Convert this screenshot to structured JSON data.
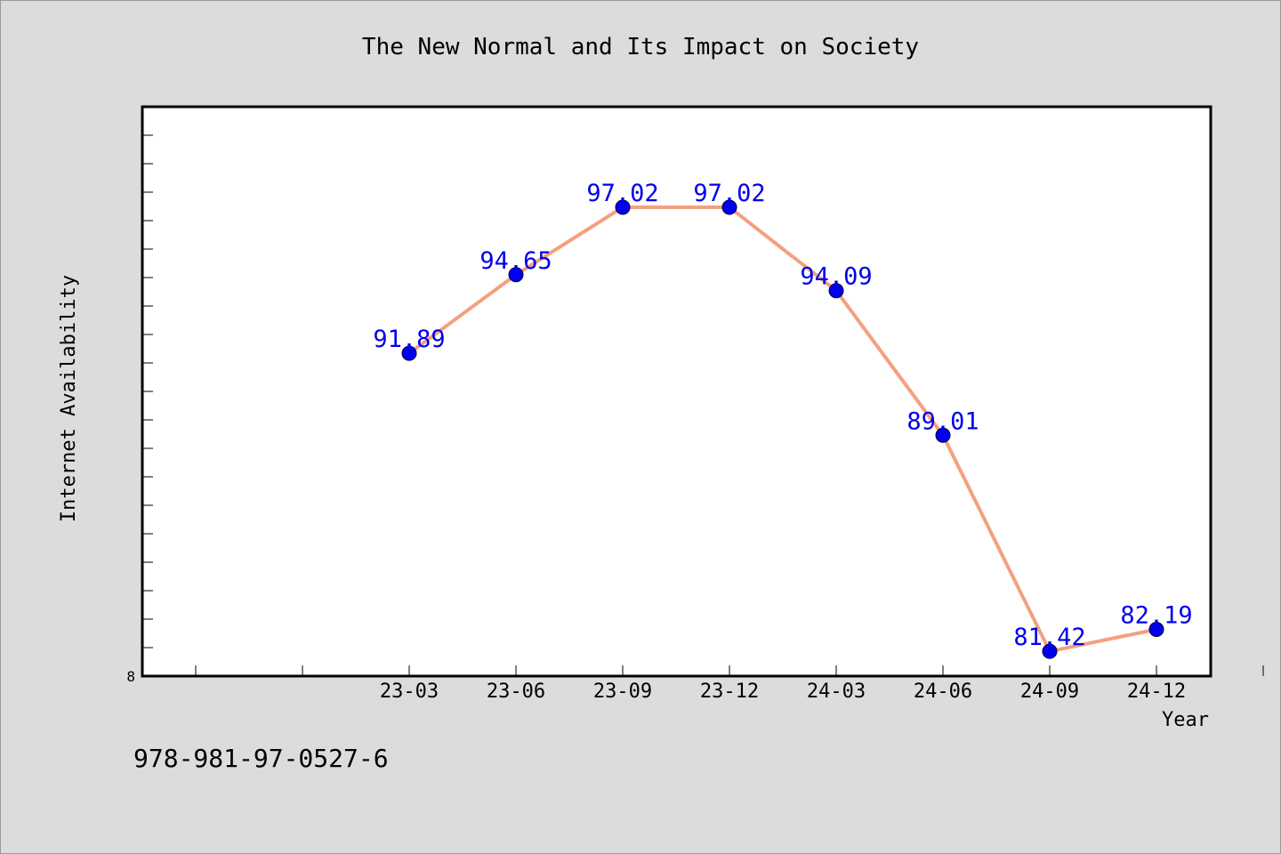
{
  "chart_data": {
    "type": "line",
    "title": "The New Normal and Its Impact on Society",
    "xlabel": "Year",
    "ylabel": "Internet Availability",
    "categories": [
      "23-03",
      "23-06",
      "23-09",
      "23-12",
      "24-03",
      "24-06",
      "24-09",
      "24-12"
    ],
    "x_axis_range": [
      "21-03",
      "24-12"
    ],
    "series": [
      {
        "values": [
          91.89,
          94.65,
          97.02,
          97.02,
          94.09,
          89.01,
          81.42,
          82.19
        ],
        "line_color": "#f4a07f",
        "marker_color": "#0000ee"
      }
    ],
    "data_labels": [
      "91.89",
      "94.65",
      "97.02",
      "97.02",
      "94.09",
      "89.01",
      "81.42",
      "82.19"
    ],
    "ylim": [
      80.55,
      100.55
    ],
    "y_tick_labels": [
      "8"
    ],
    "grid": false,
    "legend": "none",
    "plot_background": "#ffffff",
    "page_background": "#dcdcdc"
  },
  "footnote": "978-981-97-0527-6"
}
